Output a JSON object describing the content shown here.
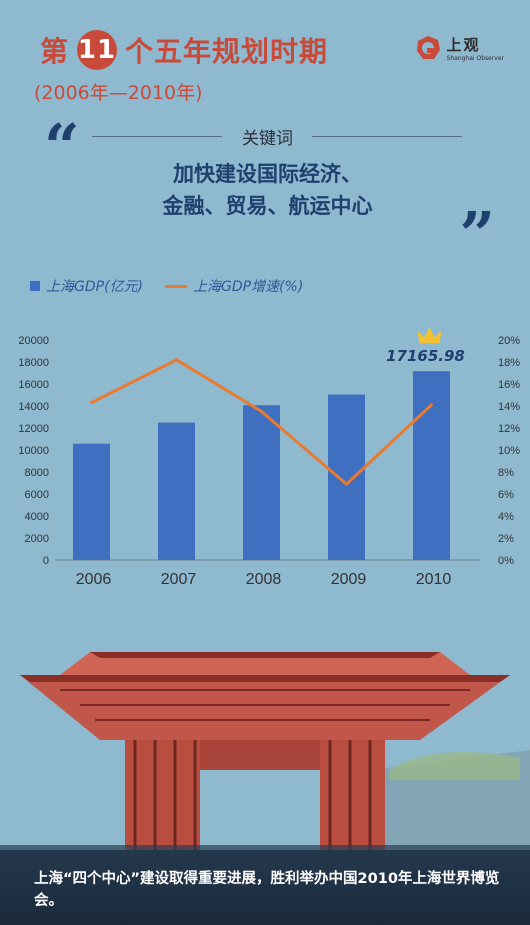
{
  "header": {
    "title_pre": "第",
    "title_num": "11",
    "title_post": "个五年规划时期",
    "subtitle": "(2006年—2010年)",
    "logo_cn": "上观",
    "logo_en": "Shanghai Observer",
    "logo_color": "#c84a3a"
  },
  "keyword": {
    "label": "关键词",
    "line1": "加快建设国际经济、",
    "line2": "金融、贸易、航运中心",
    "open_quote": "“",
    "close_quote": "”"
  },
  "legend": {
    "bar_label": "上海GDP(亿元)",
    "line_label": "上海GDP增速(%)"
  },
  "chart_data": {
    "type": "bar",
    "categories": [
      "2006",
      "2007",
      "2008",
      "2009",
      "2010"
    ],
    "series": [
      {
        "name": "上海GDP(亿元)",
        "type": "bar",
        "axis": "left",
        "values": [
          10572,
          12494,
          14070,
          15046,
          17165.98
        ],
        "color": "#3f6fc0"
      },
      {
        "name": "上海GDP增速(%)",
        "type": "line",
        "axis": "right",
        "values": [
          14.3,
          18.2,
          13.5,
          6.9,
          14.1
        ],
        "color": "#ea7a2e"
      }
    ],
    "left_ylim": [
      0,
      20000
    ],
    "left_ticks": [
      "0",
      "2000",
      "4000",
      "6000",
      "8000",
      "10000",
      "12000",
      "14000",
      "16000",
      "18000",
      "20000"
    ],
    "right_ylim": [
      0,
      20
    ],
    "right_ticks": [
      "0%",
      "2%",
      "4%",
      "6%",
      "8%",
      "10%",
      "12%",
      "14%",
      "16%",
      "18%",
      "20%"
    ],
    "data_label": "17165.98",
    "grid": false,
    "legend_position": "top-left"
  },
  "caption": {
    "text": "上海“四个中心”建设取得重要进展，胜利举办中国2010年上海世界博览会。"
  }
}
